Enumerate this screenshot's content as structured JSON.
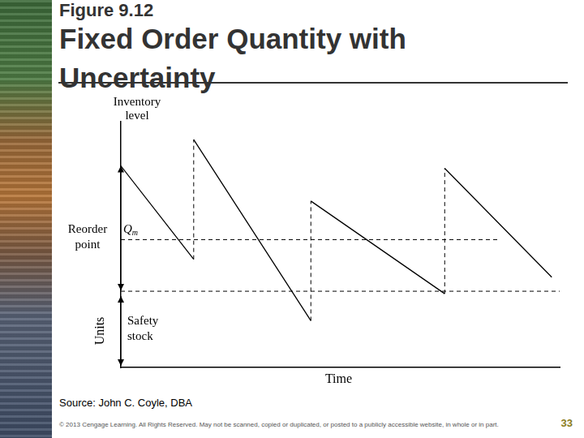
{
  "chart_data": {
    "type": "line",
    "figure_label": "Figure 9.12",
    "title": "Fixed Order Quantity with Uncertainty",
    "y_label": "Units",
    "y_title_top": "Inventory level",
    "x_label": "Time",
    "reorder_point": {
      "label": "Reorder point",
      "symbol": "Qm",
      "value": 52
    },
    "safety_stock": {
      "label": "Safety stock",
      "value": 31
    },
    "source": "Source: John C. Coyle, DBA",
    "copyright": "© 2013 Cengage Learning. All Rights Reserved. May not be scanned, copied or duplicated, or posted to a publicly accessible website, in whole or in part.",
    "page_number": "33",
    "xlim": [
      0,
      100
    ],
    "ylim": [
      0,
      100
    ],
    "xticks": [],
    "yticks": [],
    "tick_labels": false,
    "grid": false,
    "series": [
      {
        "color": "#000000",
        "line_style": "solid",
        "x": [
          0,
          16.6,
          16.6,
          16.6,
          43.3,
          43.3,
          43.3,
          73.8,
          73.8,
          73.8,
          98.2
        ],
        "values": [
          82,
          44,
          null,
          92.7,
          19,
          null,
          67.7,
          30,
          null,
          81,
          36.7
        ]
      },
      {
        "color": "#000000",
        "line_style": "dashed",
        "x": [
          16.6,
          16.6,
          16.6,
          43.3,
          43.3,
          43.3,
          73.8,
          73.8
        ],
        "values": [
          44,
          92.7,
          null,
          19,
          67.7,
          null,
          30,
          81
        ]
      },
      {
        "color": "#000000",
        "line_style": "dashed",
        "x": [
          0,
          86
        ],
        "values": [
          52,
          52
        ]
      },
      {
        "color": "#000000",
        "line_style": "dashed",
        "x": [
          0,
          100
        ],
        "values": [
          31,
          31
        ]
      }
    ]
  }
}
